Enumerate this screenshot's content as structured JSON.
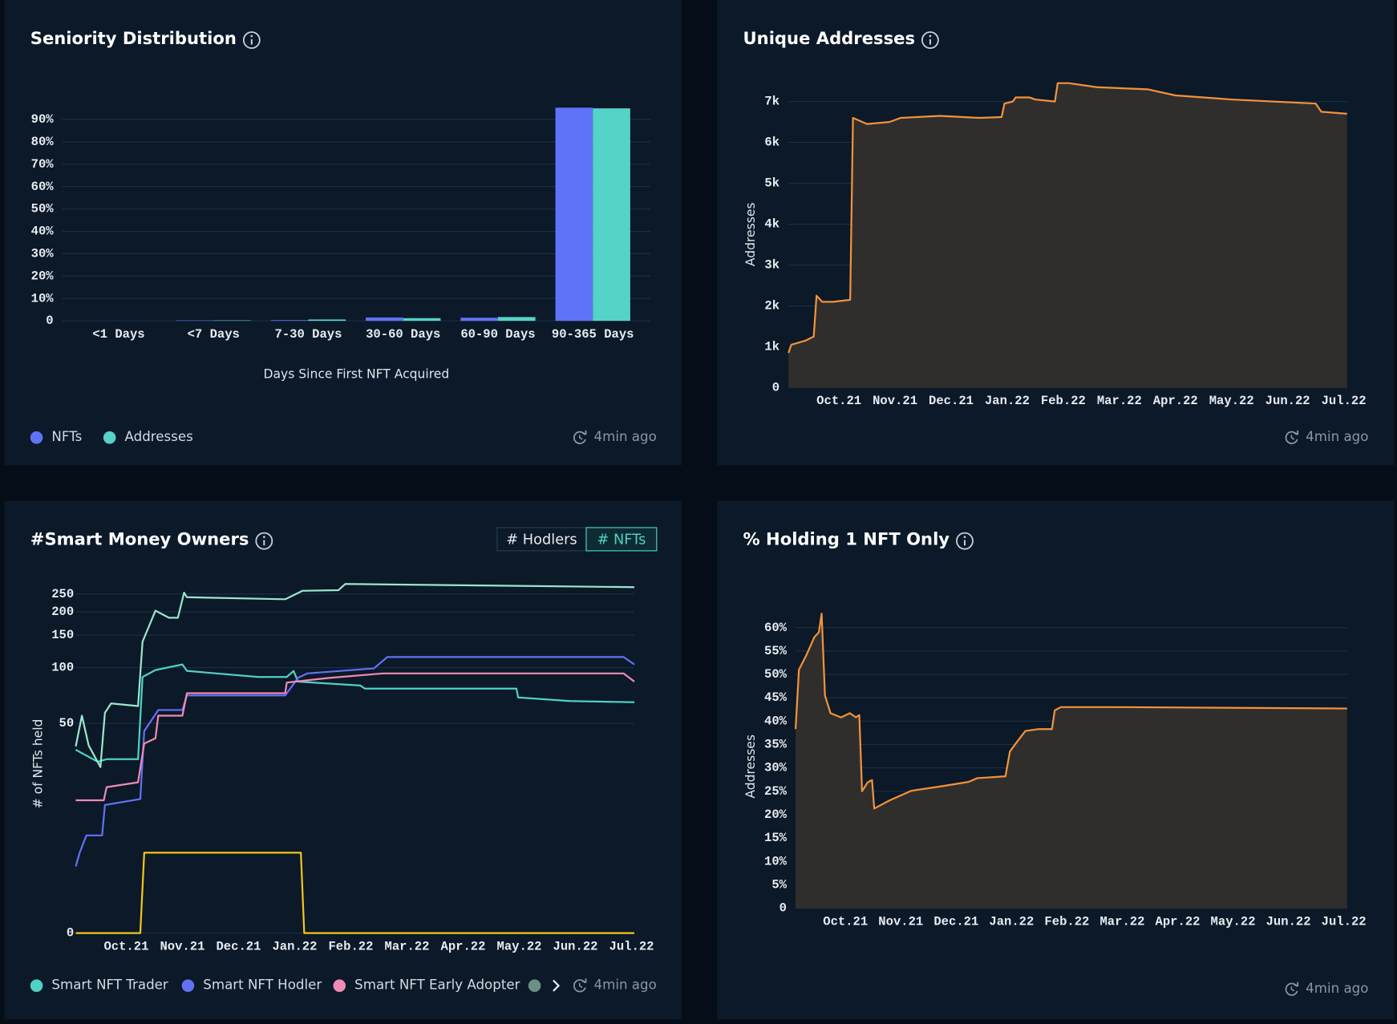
{
  "chart_data": [
    {
      "type": "bar",
      "title": "Seniority Distribution",
      "x_label": "Days Since First NFT Acquired",
      "categories": [
        "<1 Days",
        "<7 Days",
        "7-30 Days",
        "30-60 Days",
        "60-90 Days",
        "90-365 Days"
      ],
      "series": [
        {
          "name": "NFTs",
          "color": "#5f73f9",
          "values": [
            0,
            0.2,
            0.3,
            1.5,
            1.4,
            95.3
          ]
        },
        {
          "name": "Addresses",
          "color": "#55d3c6",
          "values": [
            0,
            0.2,
            0.6,
            1.2,
            1.7,
            95
          ]
        }
      ],
      "ylim": [
        0,
        100
      ],
      "yticks": [
        0,
        {
          "value": 10,
          "label": "10%"
        },
        {
          "value": 20,
          "label": "20%"
        },
        {
          "value": 30,
          "label": "30%"
        },
        {
          "value": 40,
          "label": "40%"
        },
        {
          "value": 50,
          "label": "50%"
        },
        {
          "value": 60,
          "label": "60%"
        },
        {
          "value": 70,
          "label": "70%"
        },
        {
          "value": 80,
          "label": "80%"
        },
        {
          "value": 90,
          "label": "90%"
        }
      ],
      "grid": true,
      "updated": "4min ago"
    },
    {
      "type": "area",
      "title": "Unique Addresses",
      "y_label": "Addresses",
      "color": "#f4923a",
      "x": [
        0.1,
        0.15,
        0.4,
        0.55,
        0.6,
        0.7,
        0.9,
        1.2,
        1.25,
        1.5,
        1.9,
        2.1,
        2.8,
        3.5,
        3.9,
        3.95,
        4.1,
        4.15,
        4.4,
        4.5,
        4.85,
        4.9,
        5.1,
        5.6,
        6.5,
        7.0,
        8.0,
        9.5,
        9.6,
        10.06
      ],
      "values": [
        850,
        1050,
        1150,
        1250,
        2250,
        2100,
        2100,
        2150,
        6600,
        6450,
        6500,
        6600,
        6650,
        6600,
        6620,
        6950,
        7000,
        7100,
        7100,
        7050,
        7000,
        7450,
        7450,
        7350,
        7300,
        7150,
        7050,
        6950,
        6750,
        6700
      ],
      "xlim": [
        0.1,
        10.06
      ],
      "xticks": [
        {
          "value": 1,
          "label": "Oct.21"
        },
        {
          "value": 2,
          "label": "Nov.21"
        },
        {
          "value": 3,
          "label": "Dec.21"
        },
        {
          "value": 4,
          "label": "Jan.22"
        },
        {
          "value": 5,
          "label": "Feb.22"
        },
        {
          "value": 6,
          "label": "Mar.22"
        },
        {
          "value": 7,
          "label": "Apr.22"
        },
        {
          "value": 8,
          "label": "May.22"
        },
        {
          "value": 9,
          "label": "Jun.22"
        },
        {
          "value": 10,
          "label": "Jul.22"
        }
      ],
      "ylim": [
        0,
        7500
      ],
      "yticks": [
        0,
        {
          "value": 1000,
          "label": "1k"
        },
        {
          "value": 2000,
          "label": "2k"
        },
        {
          "value": 3000,
          "label": "3k"
        },
        {
          "value": 4000,
          "label": "4k"
        },
        {
          "value": 5000,
          "label": "5k"
        },
        {
          "value": 6000,
          "label": "6k"
        },
        {
          "value": 7000,
          "label": "7k"
        }
      ],
      "grid": true,
      "updated": "4min ago"
    },
    {
      "type": "line",
      "title": "#Smart Money Owners",
      "y_label": "# of NFTs held",
      "toggle": [
        "# Hodlers",
        "# NFTs"
      ],
      "active_toggle": 1,
      "yscale": "symlog",
      "linthresh": 10,
      "series": [
        {
          "name": "Smart NFT Trader",
          "color": "#4fd1c5",
          "x": [
            0.1,
            0.49,
            0.65,
            1.21,
            1.29,
            1.52,
            2.0,
            2.08,
            3.35,
            3.86,
            3.98,
            4.06,
            5.17,
            5.25,
            7.95,
            7.98,
            8.9,
            10.05
          ],
          "values": [
            36,
            31,
            32,
            32,
            89,
            97,
            104,
            96,
            89,
            89,
            96,
            84,
            80,
            77,
            77,
            69,
            66,
            65
          ]
        },
        {
          "name": "Smart NFT Hodler",
          "color": "#6470f5",
          "x": [
            0.1,
            0.17,
            0.29,
            0.57,
            0.62,
            1.25,
            1.32,
            1.57,
            2.0,
            2.08,
            3.83,
            4.06,
            4.22,
            5.41,
            5.65,
            9.86,
            10.05
          ],
          "values": [
            8.3,
            10,
            12.4,
            12.4,
            18.1,
            19.5,
            45.4,
            59,
            59,
            70.7,
            70.7,
            88,
            93,
            99,
            114,
            114,
            104
          ]
        },
        {
          "name": "Smart NFT Early Adopter",
          "color": "#f08bb5",
          "x": [
            0.1,
            0.6,
            0.65,
            1.21,
            1.32,
            1.52,
            1.57,
            2.0,
            2.08,
            3.83,
            3.86,
            4.62,
            5.57,
            9.86,
            10.05
          ],
          "values": [
            19.2,
            19.2,
            22.6,
            24,
            38.9,
            41.5,
            55,
            55,
            72.7,
            72.7,
            83,
            88,
            93,
            93,
            84
          ]
        },
        {
          "color": "#9be6cd",
          "x": [
            0.1,
            0.21,
            0.33,
            0.54,
            0.62,
            0.73,
            1.21,
            1.29,
            1.52,
            1.76,
            1.92,
            2.03,
            2.08,
            3.83,
            4.14,
            4.78,
            4.9,
            10.05
          ],
          "values": [
            37.5,
            55,
            38,
            29,
            57,
            64,
            62,
            138,
            203,
            186,
            186,
            254,
            240,
            234,
            260,
            262,
            283,
            272
          ]
        },
        {
          "color": "#f5c518",
          "x": [
            0.1,
            1.25,
            1.32,
            4.11,
            4.17,
            10.05
          ],
          "values": [
            0,
            0,
            10,
            10,
            0,
            0
          ]
        }
      ],
      "xlim": [
        0.1,
        10.05
      ],
      "xticks": [
        {
          "value": 1,
          "label": "Oct.21"
        },
        {
          "value": 2,
          "label": "Nov.21"
        },
        {
          "value": 3,
          "label": "Dec.21"
        },
        {
          "value": 4,
          "label": "Jan.22"
        },
        {
          "value": 5,
          "label": "Feb.22"
        },
        {
          "value": 6,
          "label": "Mar.22"
        },
        {
          "value": 7,
          "label": "Apr.22"
        },
        {
          "value": 8,
          "label": "May.22"
        },
        {
          "value": 9,
          "label": "Jun.22"
        },
        {
          "value": 10,
          "label": "Jul.22"
        }
      ],
      "ylim": [
        0,
        300
      ],
      "yticks": [
        0,
        50,
        100,
        150,
        200,
        250
      ],
      "grid": true,
      "updated": "4min ago"
    },
    {
      "type": "area",
      "title": "% Holding 1 NFT Only",
      "y_label": "Addresses",
      "color": "#f4923a",
      "x": [
        0.1,
        0.16,
        0.29,
        0.44,
        0.52,
        0.57,
        0.63,
        0.73,
        0.92,
        1.08,
        1.19,
        1.25,
        1.3,
        1.4,
        1.48,
        1.52,
        1.79,
        2.19,
        2.75,
        3.22,
        3.38,
        3.89,
        3.97,
        4.1,
        4.25,
        4.49,
        4.73,
        4.78,
        4.89,
        5.92,
        10.06
      ],
      "values": [
        38.3,
        51,
        54,
        58,
        59,
        63,
        45.5,
        41.7,
        40.8,
        41.7,
        40.8,
        41.3,
        25,
        26.9,
        27.4,
        21.3,
        23,
        25.1,
        26.1,
        27,
        27.8,
        28.2,
        33.5,
        35.6,
        37.9,
        38.3,
        38.3,
        42.3,
        43,
        43,
        42.7
      ],
      "xlim": [
        0.1,
        10.06
      ],
      "xticks": [
        {
          "value": 1,
          "label": "Oct.21"
        },
        {
          "value": 2,
          "label": "Nov.21"
        },
        {
          "value": 3,
          "label": "Dec.21"
        },
        {
          "value": 4,
          "label": "Jan.22"
        },
        {
          "value": 5,
          "label": "Feb.22"
        },
        {
          "value": 6,
          "label": "Mar.22"
        },
        {
          "value": 7,
          "label": "Apr.22"
        },
        {
          "value": 8,
          "label": "May.22"
        },
        {
          "value": 9,
          "label": "Jun.22"
        },
        {
          "value": 10,
          "label": "Jul.22"
        }
      ],
      "ylim": [
        0,
        65
      ],
      "yticks": [
        0,
        {
          "value": 5,
          "label": "5%"
        },
        {
          "value": 10,
          "label": "10%"
        },
        {
          "value": 15,
          "label": "15%"
        },
        {
          "value": 20,
          "label": "20%"
        },
        {
          "value": 25,
          "label": "25%"
        },
        {
          "value": 30,
          "label": "30%"
        },
        {
          "value": 35,
          "label": "35%"
        },
        {
          "value": 40,
          "label": "40%"
        },
        {
          "value": 45,
          "label": "45%"
        },
        {
          "value": 50,
          "label": "50%"
        },
        {
          "value": 55,
          "label": "55%"
        },
        {
          "value": 60,
          "label": "60%"
        }
      ],
      "grid": true,
      "updated": "4min ago"
    }
  ]
}
